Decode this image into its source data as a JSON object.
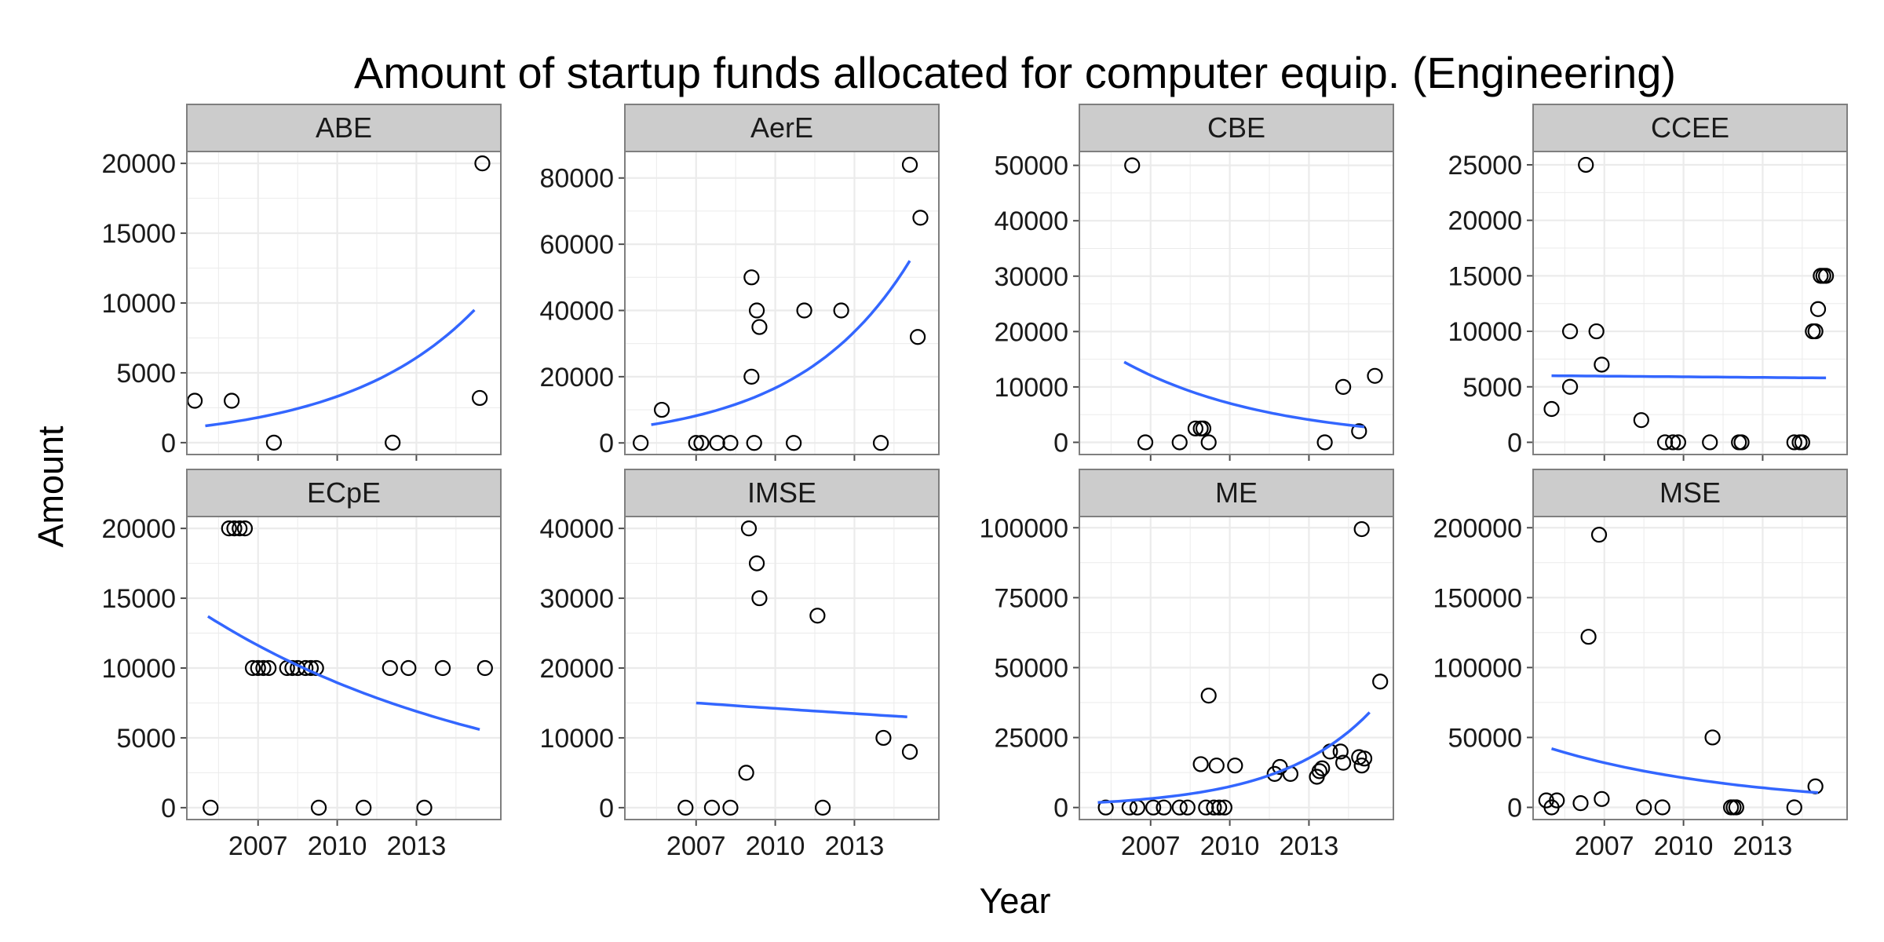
{
  "chart_data": {
    "type": "scatter",
    "title": "Amount of startup funds allocated for computer equip. (Engineering)",
    "xlabel": "Year",
    "ylabel": "Amount",
    "xlim": [
      2004.3,
      2016.2
    ],
    "x_ticks": [
      2007,
      2010,
      2013
    ],
    "x_tick_labels": [
      "2007",
      "2010",
      "2013"
    ],
    "grid": true,
    "legend": "none",
    "colors": {
      "point_stroke": "#000000",
      "trend_line": "#3366ff",
      "panel_bg": "#ffffff",
      "grid": "#ebebeb",
      "strip_bg": "#cccccc",
      "panel_border": "#7f7f7f"
    },
    "panels": [
      {
        "name": "ABE",
        "ylim": [
          -850,
          20850
        ],
        "y_ticks": [
          0,
          5000,
          10000,
          15000,
          20000
        ],
        "y_tick_labels": [
          "0",
          "5000",
          "10000",
          "15000",
          "20000"
        ],
        "x": [
          2004.6,
          2006.0,
          2007.6,
          2012.1,
          2015.4,
          2015.5
        ],
        "y": [
          3000,
          3000,
          0,
          0,
          3200,
          20000
        ],
        "trend": {
          "x": [
            2005.0,
            2015.2
          ],
          "y0": 1200,
          "y1": 9500
        }
      },
      {
        "name": "AerE",
        "ylim": [
          -3500,
          88000
        ],
        "y_ticks": [
          0,
          20000,
          40000,
          60000,
          80000
        ],
        "y_tick_labels": [
          "0",
          "20000",
          "40000",
          "60000",
          "80000"
        ],
        "x": [
          2004.9,
          2005.7,
          2007.0,
          2007.2,
          2007.8,
          2008.3,
          2009.1,
          2009.1,
          2009.3,
          2009.4,
          2009.2,
          2010.7,
          2011.1,
          2012.5,
          2014.0,
          2015.1,
          2015.5,
          2015.4
        ],
        "y": [
          0,
          10000,
          0,
          0,
          0,
          0,
          50000,
          20000,
          40000,
          35000,
          0,
          0,
          40000,
          40000,
          0,
          84000,
          68000,
          32000
        ],
        "trend": {
          "x": [
            2005.3,
            2015.1
          ],
          "y0": 5500,
          "y1": 55000
        }
      },
      {
        "name": "CBE",
        "ylim": [
          -2200,
          52500
        ],
        "y_ticks": [
          0,
          10000,
          20000,
          30000,
          40000,
          50000
        ],
        "y_tick_labels": [
          "0",
          "10000",
          "20000",
          "30000",
          "40000",
          "50000"
        ],
        "x": [
          2006.3,
          2006.8,
          2008.1,
          2008.7,
          2008.9,
          2009.0,
          2009.2,
          2013.6,
          2014.3,
          2014.9,
          2015.5
        ],
        "y": [
          50000,
          0,
          0,
          2500,
          2500,
          2500,
          0,
          0,
          10000,
          2000,
          12000
        ],
        "trend": {
          "x": [
            2006.0,
            2015.1
          ],
          "y0": 14500,
          "y1": 2800
        }
      },
      {
        "name": "CCEE",
        "ylim": [
          -1100,
          26200
        ],
        "y_ticks": [
          0,
          5000,
          10000,
          15000,
          20000,
          25000
        ],
        "y_tick_labels": [
          "0",
          "5000",
          "10000",
          "15000",
          "20000",
          "25000"
        ],
        "x": [
          2005.0,
          2005.7,
          2005.7,
          2006.3,
          2006.7,
          2006.9,
          2008.4,
          2009.3,
          2009.6,
          2009.8,
          2011.0,
          2012.1,
          2012.2,
          2014.2,
          2014.4,
          2014.5,
          2014.9,
          2015.0,
          2015.1,
          2015.2,
          2015.3,
          2015.4
        ],
        "y": [
          3000,
          5000,
          10000,
          25000,
          10000,
          7000,
          2000,
          0,
          0,
          0,
          0,
          0,
          0,
          0,
          0,
          0,
          10000,
          10000,
          12000,
          15000,
          15000,
          15000
        ],
        "trend": {
          "x": [
            2005.0,
            2015.4
          ],
          "y0": 6000,
          "y1": 5800
        }
      },
      {
        "name": "ECpE",
        "ylim": [
          -850,
          20850
        ],
        "y_ticks": [
          0,
          5000,
          10000,
          15000,
          20000
        ],
        "y_tick_labels": [
          "0",
          "5000",
          "10000",
          "15000",
          "20000"
        ],
        "x": [
          2005.2,
          2005.9,
          2006.1,
          2006.3,
          2006.5,
          2006.8,
          2007.0,
          2007.2,
          2007.4,
          2008.1,
          2008.3,
          2008.5,
          2008.8,
          2009.0,
          2009.2,
          2009.3,
          2011.0,
          2012.0,
          2012.7,
          2013.3,
          2014.0,
          2015.6
        ],
        "y": [
          0,
          20000,
          20000,
          20000,
          20000,
          10000,
          10000,
          10000,
          10000,
          10000,
          10000,
          10000,
          10000,
          10000,
          10000,
          0,
          0,
          10000,
          10000,
          0,
          10000,
          10000
        ],
        "trend": {
          "x": [
            2005.1,
            2015.4
          ],
          "y0": 13700,
          "y1": 5600
        }
      },
      {
        "name": "IMSE",
        "ylim": [
          -1700,
          41700
        ],
        "y_ticks": [
          0,
          10000,
          20000,
          30000,
          40000
        ],
        "y_tick_labels": [
          "0",
          "10000",
          "20000",
          "30000",
          "40000"
        ],
        "x": [
          2006.6,
          2007.6,
          2008.3,
          2008.9,
          2009.0,
          2009.3,
          2009.4,
          2011.6,
          2011.8,
          2014.1,
          2015.1
        ],
        "y": [
          0,
          0,
          0,
          5000,
          40000,
          35000,
          30000,
          27500,
          0,
          10000,
          8000
        ],
        "trend": {
          "x": [
            2007.0,
            2015.0
          ],
          "y0": 15000,
          "y1": 13000
        }
      },
      {
        "name": "ME",
        "ylim": [
          -4300,
          104000
        ],
        "y_ticks": [
          0,
          25000,
          50000,
          75000,
          100000
        ],
        "y_tick_labels": [
          "0",
          "25000",
          "50000",
          "75000",
          "100000"
        ],
        "x": [
          2005.3,
          2006.2,
          2006.5,
          2007.1,
          2007.5,
          2008.1,
          2008.4,
          2008.9,
          2009.1,
          2009.2,
          2009.4,
          2009.5,
          2009.6,
          2009.8,
          2010.2,
          2011.7,
          2011.9,
          2012.3,
          2013.3,
          2013.4,
          2013.5,
          2013.8,
          2014.2,
          2014.3,
          2014.9,
          2015.0,
          2015.1,
          2015.0,
          2015.7
        ],
        "y": [
          0,
          0,
          0,
          0,
          0,
          0,
          0,
          15500,
          0,
          40000,
          0,
          15000,
          0,
          0,
          15000,
          12000,
          14500,
          12000,
          11000,
          13000,
          14000,
          20000,
          20000,
          16000,
          18000,
          15000,
          17500,
          99500,
          45000
        ],
        "trend": {
          "x": [
            2005.0,
            2015.3
          ],
          "y0": 1800,
          "y1": 34000
        }
      },
      {
        "name": "MSE",
        "ylim": [
          -8700,
          208000
        ],
        "y_ticks": [
          0,
          50000,
          100000,
          150000,
          200000
        ],
        "y_tick_labels": [
          "0",
          "50000",
          "100000",
          "150000",
          "200000"
        ],
        "x": [
          2004.8,
          2005.0,
          2005.2,
          2006.1,
          2006.4,
          2006.8,
          2006.9,
          2008.5,
          2009.2,
          2011.1,
          2011.8,
          2011.9,
          2012.0,
          2014.2,
          2015.0
        ],
        "y": [
          5000,
          0,
          5000,
          3000,
          122000,
          195000,
          6000,
          0,
          0,
          50000,
          0,
          0,
          0,
          0,
          15000
        ],
        "trend": {
          "x": [
            2005.0,
            2015.1
          ],
          "y0": 42000,
          "y1": 10500
        }
      }
    ]
  }
}
